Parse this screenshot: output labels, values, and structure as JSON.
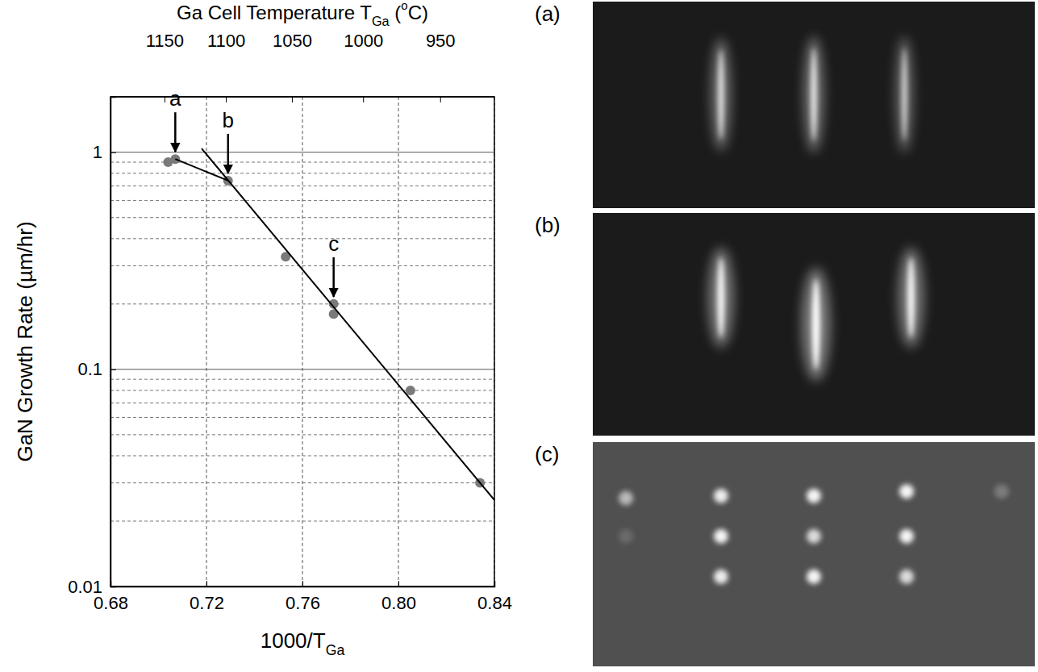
{
  "chart_data": {
    "type": "scatter",
    "title": [
      {
        "text": "Ga Cell Temperature T"
      },
      {
        "text": "Ga",
        "sub": true
      },
      {
        "text": " ("
      },
      {
        "text": "o",
        "sup": true
      },
      {
        "text": "C)"
      }
    ],
    "x_label": [
      {
        "text": "1000/T"
      },
      {
        "text": "Ga",
        "sub": true
      }
    ],
    "y_label": [
      {
        "text": "GaN Growth Rate (µm/hr)"
      }
    ],
    "log": "y",
    "grid": true,
    "xlim": [
      0.68,
      0.84
    ],
    "xticks": [
      0.68,
      0.72,
      0.76,
      {
        "value": 0.8,
        "label": "0.80"
      },
      0.84
    ],
    "ylim": [
      0.01,
      1.8
    ],
    "yticks": [
      0.01,
      0.1,
      1
    ],
    "x2lim": [
      1197.4,
      917.3
    ],
    "x2ticks": [
      1150,
      1100,
      1050,
      1000,
      950
    ],
    "series": [
      {
        "type": "scatter",
        "color": "#7a7a7a",
        "marker": "circle",
        "x": [
          0.704,
          0.707,
          0.729,
          0.753,
          0.773,
          0.773,
          0.805,
          0.834
        ],
        "values": [
          0.9,
          0.93,
          0.74,
          0.33,
          0.2,
          0.18,
          0.08,
          0.03
        ]
      },
      {
        "type": "line",
        "color": "#000000",
        "line_style": "solid",
        "x": [
          0.707,
          0.729
        ],
        "values": [
          0.93,
          0.74
        ]
      },
      {
        "type": "line",
        "color": "#000000",
        "line_style": "solid",
        "x": [
          0.718,
          0.84
        ],
        "values": [
          1.04,
          0.025
        ]
      }
    ],
    "annotations": [
      {
        "text": "a",
        "x": 0.707,
        "y": 0.93
      },
      {
        "text": "b",
        "x": 0.729,
        "y": 0.74
      },
      {
        "text": "c",
        "x": 0.773,
        "y": 0.2
      }
    ]
  },
  "panels": [
    {
      "label": "(a)"
    },
    {
      "label": "(b)"
    },
    {
      "label": "(c)"
    }
  ]
}
